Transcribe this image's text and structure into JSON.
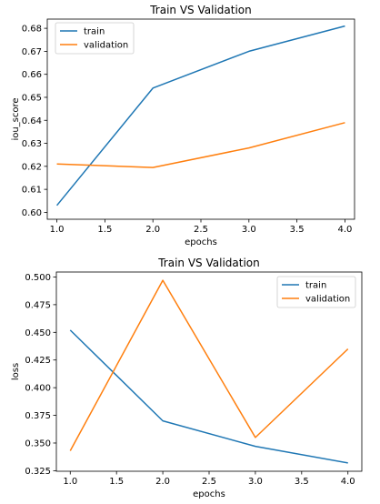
{
  "chart_data": [
    {
      "type": "line",
      "title": "Train VS Validation",
      "xlabel": "epochs",
      "ylabel": "iou_score",
      "x": [
        1.0,
        2.0,
        3.0,
        4.0
      ],
      "xlim": [
        0.9,
        4.1
      ],
      "ylim": [
        0.597,
        0.684
      ],
      "xticks": [
        "1.0",
        "1.5",
        "2.0",
        "2.5",
        "3.0",
        "3.5",
        "4.0"
      ],
      "yticks": [
        "0.60",
        "0.61",
        "0.62",
        "0.63",
        "0.64",
        "0.65",
        "0.66",
        "0.67",
        "0.68"
      ],
      "legend_position": "upper left",
      "series": [
        {
          "name": "train",
          "color": "#1f77b4",
          "values": [
            0.603,
            0.654,
            0.67,
            0.681
          ]
        },
        {
          "name": "validation",
          "color": "#ff7f0e",
          "values": [
            0.621,
            0.6195,
            0.628,
            0.639
          ]
        }
      ]
    },
    {
      "type": "line",
      "title": "Train VS Validation",
      "xlabel": "epochs",
      "ylabel": "loss",
      "x": [
        1.0,
        2.0,
        3.0,
        4.0
      ],
      "xlim": [
        0.85,
        4.15
      ],
      "ylim": [
        0.3245,
        0.5045
      ],
      "xticks": [
        "1.0",
        "1.5",
        "2.0",
        "2.5",
        "3.0",
        "3.5",
        "4.0"
      ],
      "yticks": [
        "0.325",
        "0.350",
        "0.375",
        "0.400",
        "0.425",
        "0.450",
        "0.475",
        "0.500"
      ],
      "legend_position": "upper right",
      "series": [
        {
          "name": "train",
          "color": "#1f77b4",
          "values": [
            0.452,
            0.37,
            0.347,
            0.332
          ]
        },
        {
          "name": "validation",
          "color": "#ff7f0e",
          "values": [
            0.343,
            0.497,
            0.355,
            0.435
          ]
        }
      ]
    }
  ]
}
